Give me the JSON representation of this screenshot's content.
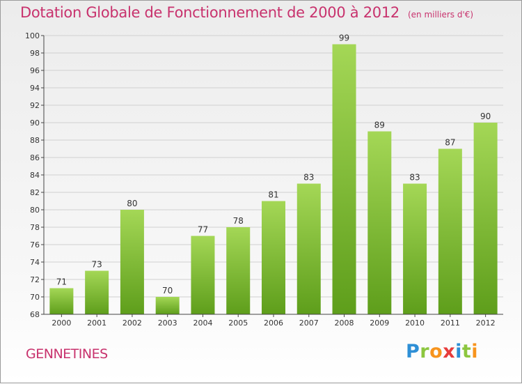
{
  "title": "Dotation Globale de Fonctionnement de 2000 à 2012",
  "unit_label": "(en milliers d'€)",
  "place": "GENNETINES",
  "logo": {
    "letters": [
      "P",
      "r",
      "o",
      "x",
      "i",
      "t",
      "i"
    ],
    "colors": [
      "#2e8fd6",
      "#8cc63f",
      "#f7941d",
      "#e73c3c",
      "#2e8fd6",
      "#8cc63f",
      "#f7941d"
    ]
  },
  "colors": {
    "accent": "#c8326d",
    "bar_light": "#a4d756",
    "bar_dark": "#5e9e1b",
    "grid": "#d0d0d0",
    "axis": "#444444"
  },
  "chart_data": {
    "type": "bar",
    "categories": [
      "2000",
      "2001",
      "2002",
      "2003",
      "2004",
      "2005",
      "2006",
      "2007",
      "2008",
      "2009",
      "2010",
      "2011",
      "2012"
    ],
    "values": [
      71,
      73,
      80,
      70,
      77,
      78,
      81,
      83,
      99,
      89,
      83,
      87,
      90
    ],
    "ylim": [
      68,
      100
    ],
    "yticks": [
      68,
      70,
      72,
      74,
      76,
      78,
      80,
      82,
      84,
      86,
      88,
      90,
      92,
      94,
      96,
      98,
      100
    ],
    "grid": true,
    "xlabel": "",
    "ylabel": ""
  }
}
